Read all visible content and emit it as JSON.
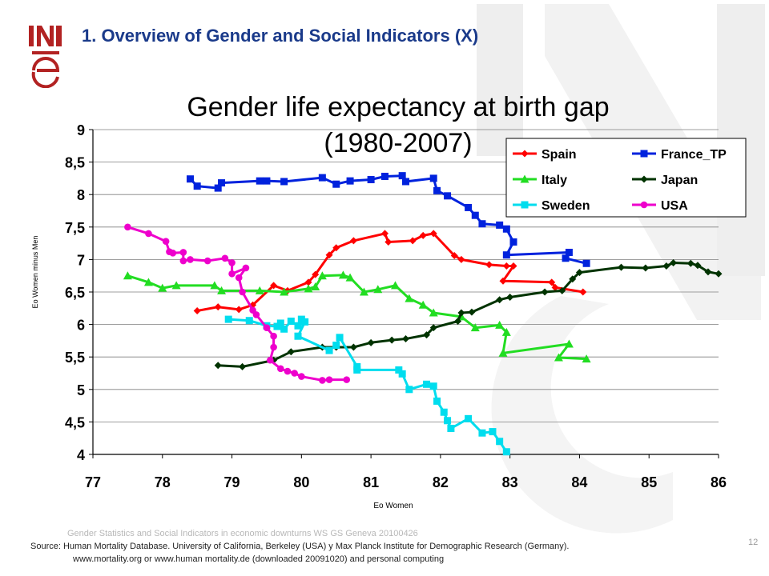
{
  "slide": {
    "title": "1. Overview of Gender and Social Indicators (X)",
    "footer_watermark": "Gender Statistics and Social Indicators in economic downturns WS GS Geneva 20100426",
    "source_line1": "Source: Human Mortality Database. University of California, Berkeley (USA) y Max Planck Institute for Demographic Research (Germany).",
    "source_line2": "www.mortality.org or www.human mortality.de (downloaded 20091020) and personal computing",
    "page_number": "12",
    "logo_text": "INE"
  },
  "chart_data": {
    "type": "line",
    "title_line1": "Gender life expectancy at birth gap",
    "title_line2": "(1980-2007)",
    "xlabel": "Eo Women",
    "ylabel": "Eo Women minus Men",
    "xlim": [
      77,
      86
    ],
    "ylim": [
      4,
      9
    ],
    "x_ticks": [
      "77",
      "78",
      "79",
      "80",
      "81",
      "82",
      "83",
      "84",
      "85",
      "86"
    ],
    "y_ticks": [
      "4",
      "4,5",
      "5",
      "5,5",
      "6",
      "6,5",
      "7",
      "7,5",
      "8",
      "8,5",
      "9"
    ],
    "grid": "horizontal",
    "legend_position": "top-right",
    "series": [
      {
        "name": "Spain",
        "color": "#ff0000",
        "marker": "diamond",
        "points": [
          [
            78.5,
            6.21
          ],
          [
            78.8,
            6.27
          ],
          [
            79.1,
            6.23
          ],
          [
            79.3,
            6.3
          ],
          [
            79.6,
            6.6
          ],
          [
            79.8,
            6.52
          ],
          [
            80.1,
            6.65
          ],
          [
            80.2,
            6.77
          ],
          [
            80.4,
            7.07
          ],
          [
            80.5,
            7.18
          ],
          [
            80.75,
            7.29
          ],
          [
            81.2,
            7.4
          ],
          [
            81.25,
            7.27
          ],
          [
            81.6,
            7.29
          ],
          [
            81.75,
            7.37
          ],
          [
            81.9,
            7.4
          ],
          [
            82.2,
            7.06
          ],
          [
            82.3,
            7.0
          ],
          [
            82.7,
            6.92
          ],
          [
            82.95,
            6.9
          ],
          [
            83.05,
            6.9
          ],
          [
            82.9,
            6.67
          ],
          [
            83.6,
            6.65
          ],
          [
            83.65,
            6.57
          ],
          [
            84.05,
            6.5
          ]
        ]
      },
      {
        "name": "France_TP",
        "color": "#0022dd",
        "marker": "square",
        "points": [
          [
            78.4,
            8.24
          ],
          [
            78.5,
            8.13
          ],
          [
            78.8,
            8.1
          ],
          [
            78.85,
            8.18
          ],
          [
            79.4,
            8.21
          ],
          [
            79.5,
            8.21
          ],
          [
            79.75,
            8.2
          ],
          [
            80.3,
            8.26
          ],
          [
            80.5,
            8.16
          ],
          [
            80.7,
            8.21
          ],
          [
            81.0,
            8.23
          ],
          [
            81.2,
            8.28
          ],
          [
            81.45,
            8.29
          ],
          [
            81.5,
            8.2
          ],
          [
            81.9,
            8.25
          ],
          [
            81.95,
            8.06
          ],
          [
            82.1,
            7.98
          ],
          [
            82.4,
            7.8
          ],
          [
            82.5,
            7.68
          ],
          [
            82.6,
            7.55
          ],
          [
            82.85,
            7.53
          ],
          [
            82.95,
            7.47
          ],
          [
            83.05,
            7.27
          ],
          [
            82.95,
            7.07
          ],
          [
            83.85,
            7.11
          ],
          [
            83.8,
            7.02
          ],
          [
            84.1,
            6.94
          ]
        ]
      },
      {
        "name": "Italy",
        "color": "#22dd22",
        "marker": "triangle",
        "points": [
          [
            77.5,
            6.75
          ],
          [
            77.8,
            6.65
          ],
          [
            78.0,
            6.56
          ],
          [
            78.2,
            6.6
          ],
          [
            78.75,
            6.6
          ],
          [
            78.85,
            6.52
          ],
          [
            79.4,
            6.52
          ],
          [
            79.75,
            6.5
          ],
          [
            80.1,
            6.55
          ],
          [
            80.2,
            6.58
          ],
          [
            80.3,
            6.75
          ],
          [
            80.6,
            6.76
          ],
          [
            80.7,
            6.72
          ],
          [
            80.9,
            6.5
          ],
          [
            81.1,
            6.54
          ],
          [
            81.35,
            6.6
          ],
          [
            81.55,
            6.4
          ],
          [
            81.75,
            6.3
          ],
          [
            81.9,
            6.18
          ],
          [
            82.3,
            6.12
          ],
          [
            82.5,
            5.95
          ],
          [
            82.85,
            5.99
          ],
          [
            82.95,
            5.88
          ],
          [
            82.9,
            5.56
          ],
          [
            83.85,
            5.7
          ],
          [
            83.7,
            5.49
          ],
          [
            84.1,
            5.47
          ]
        ]
      },
      {
        "name": "Japan",
        "color": "#003300",
        "marker": "diamond",
        "points": [
          [
            78.8,
            5.37
          ],
          [
            79.15,
            5.35
          ],
          [
            79.6,
            5.45
          ],
          [
            79.85,
            5.58
          ],
          [
            80.3,
            5.65
          ],
          [
            80.5,
            5.65
          ],
          [
            80.75,
            5.65
          ],
          [
            81.0,
            5.72
          ],
          [
            81.3,
            5.76
          ],
          [
            81.5,
            5.78
          ],
          [
            81.8,
            5.84
          ],
          [
            81.9,
            5.95
          ],
          [
            82.25,
            6.05
          ],
          [
            82.3,
            6.18
          ],
          [
            82.45,
            6.19
          ],
          [
            82.85,
            6.38
          ],
          [
            83.0,
            6.42
          ],
          [
            83.5,
            6.5
          ],
          [
            83.75,
            6.52
          ],
          [
            83.9,
            6.7
          ],
          [
            84.0,
            6.8
          ],
          [
            84.6,
            6.88
          ],
          [
            84.95,
            6.87
          ],
          [
            85.25,
            6.9
          ],
          [
            85.35,
            6.95
          ],
          [
            85.6,
            6.94
          ],
          [
            85.7,
            6.91
          ],
          [
            85.85,
            6.81
          ],
          [
            86.0,
            6.78
          ]
        ]
      },
      {
        "name": "Sweden",
        "color": "#00ddee",
        "marker": "square",
        "points": [
          [
            78.95,
            6.08
          ],
          [
            79.25,
            6.06
          ],
          [
            79.5,
            5.98
          ],
          [
            79.65,
            5.97
          ],
          [
            79.7,
            6.02
          ],
          [
            79.75,
            5.93
          ],
          [
            79.85,
            6.05
          ],
          [
            79.95,
            5.98
          ],
          [
            80.0,
            6.08
          ],
          [
            80.05,
            6.04
          ],
          [
            79.95,
            5.82
          ],
          [
            80.4,
            5.6
          ],
          [
            80.5,
            5.68
          ],
          [
            80.55,
            5.8
          ],
          [
            80.8,
            5.35
          ],
          [
            80.8,
            5.3
          ],
          [
            81.4,
            5.3
          ],
          [
            81.45,
            5.24
          ],
          [
            81.55,
            5.0
          ],
          [
            81.8,
            5.08
          ],
          [
            81.9,
            5.05
          ],
          [
            81.95,
            4.82
          ],
          [
            82.05,
            4.65
          ],
          [
            82.1,
            4.52
          ],
          [
            82.15,
            4.4
          ],
          [
            82.4,
            4.55
          ],
          [
            82.6,
            4.33
          ],
          [
            82.75,
            4.35
          ],
          [
            82.85,
            4.2
          ],
          [
            82.95,
            4.04
          ]
        ]
      },
      {
        "name": "USA",
        "color": "#ee00cc",
        "marker": "circle",
        "points": [
          [
            77.5,
            7.5
          ],
          [
            77.8,
            7.4
          ],
          [
            78.05,
            7.28
          ],
          [
            78.1,
            7.12
          ],
          [
            78.15,
            7.1
          ],
          [
            78.3,
            7.11
          ],
          [
            78.3,
            6.98
          ],
          [
            78.4,
            7.0
          ],
          [
            78.65,
            6.98
          ],
          [
            78.9,
            7.02
          ],
          [
            79.0,
            6.95
          ],
          [
            79.0,
            6.78
          ],
          [
            79.2,
            6.87
          ],
          [
            79.1,
            6.72
          ],
          [
            79.15,
            6.5
          ],
          [
            79.3,
            6.22
          ],
          [
            79.35,
            6.15
          ],
          [
            79.5,
            5.95
          ],
          [
            79.6,
            5.82
          ],
          [
            79.6,
            5.65
          ],
          [
            79.55,
            5.45
          ],
          [
            79.7,
            5.32
          ],
          [
            79.8,
            5.28
          ],
          [
            79.9,
            5.25
          ],
          [
            80.0,
            5.2
          ],
          [
            80.3,
            5.14
          ],
          [
            80.4,
            5.15
          ],
          [
            80.65,
            5.15
          ]
        ]
      }
    ]
  }
}
